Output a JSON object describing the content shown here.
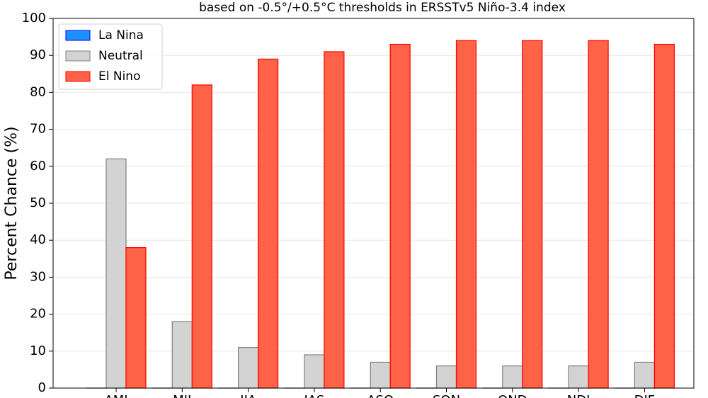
{
  "chart_data": {
    "type": "bar",
    "subtitle": "based on -0.5°/+0.5°C thresholds in ERSSTv5 Niño-3.4 index",
    "y_label": "Percent Chance (%)",
    "categories": [
      "AMJ",
      "MJJ",
      "JJA",
      "JAS",
      "ASO",
      "SON",
      "OND",
      "NDJ",
      "DJF"
    ],
    "series": [
      {
        "name": "La Nina",
        "color": "#1e90ff",
        "edge": "#0000ff",
        "values": [
          0,
          0,
          0,
          0,
          0,
          0,
          0,
          0,
          0
        ]
      },
      {
        "name": "Neutral",
        "color": "#d3d3d3",
        "edge": "#808080",
        "values": [
          62,
          18,
          11,
          9,
          7,
          6,
          6,
          6,
          7
        ]
      },
      {
        "name": "El Nino",
        "color": "#ff6347",
        "edge": "#ff0000",
        "values": [
          38,
          82,
          89,
          91,
          93,
          94,
          94,
          94,
          93
        ]
      }
    ],
    "ylim": [
      0,
      100
    ],
    "yticks": [
      0,
      10,
      20,
      30,
      40,
      50,
      60,
      70,
      80,
      90,
      100
    ],
    "grid": true,
    "legend": "upper left"
  }
}
